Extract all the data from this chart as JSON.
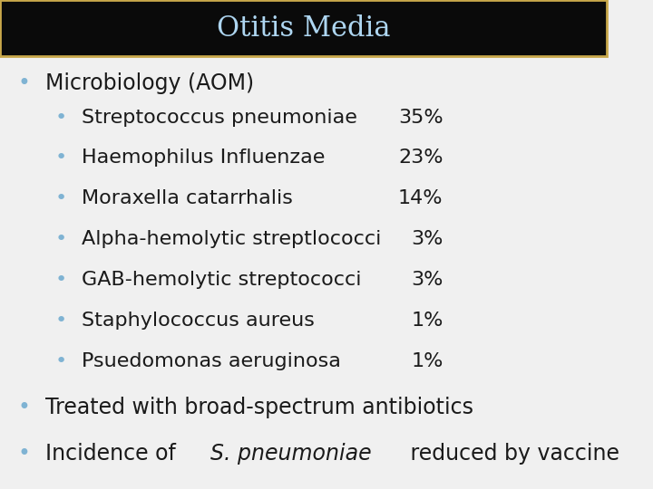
{
  "title": "Otitis Media",
  "title_color": "#aed6f1",
  "title_bg_color": "#0a0a0a",
  "title_border_color": "#c8a84b",
  "bg_color": "#f0f0f0",
  "bullet_color": "#7fb3d3",
  "text_color": "#1a1a1a",
  "font_size_title": 22,
  "font_size_main": 17,
  "font_size_sub": 16,
  "lines": [
    {
      "level": 0,
      "text": "Microbiology (AOM)",
      "pct": null
    },
    {
      "level": 1,
      "text": "Streptococcus pneumoniae",
      "pct": "35%"
    },
    {
      "level": 1,
      "text": "Haemophilus Influenzae",
      "pct": "23%"
    },
    {
      "level": 1,
      "text": "Moraxella catarrhalis",
      "pct": "14%"
    },
    {
      "level": 1,
      "text": "Alpha-hemolytic streptlococci",
      "pct": "3%"
    },
    {
      "level": 1,
      "text": "GAB-hemolytic streptococci",
      "pct": "3%"
    },
    {
      "level": 1,
      "text": "Staphylococcus aureus",
      "pct": "1%"
    },
    {
      "level": 1,
      "text": "Psuedomonas aeruginosa",
      "pct": "1%"
    },
    {
      "level": 0,
      "text": "Treated with broad-spectrum antibiotics",
      "pct": null
    },
    {
      "level": 0,
      "text": "Incidence of S. pneumoniae reduced by vaccine",
      "pct": null,
      "italic_word": "pneumoniae"
    }
  ]
}
